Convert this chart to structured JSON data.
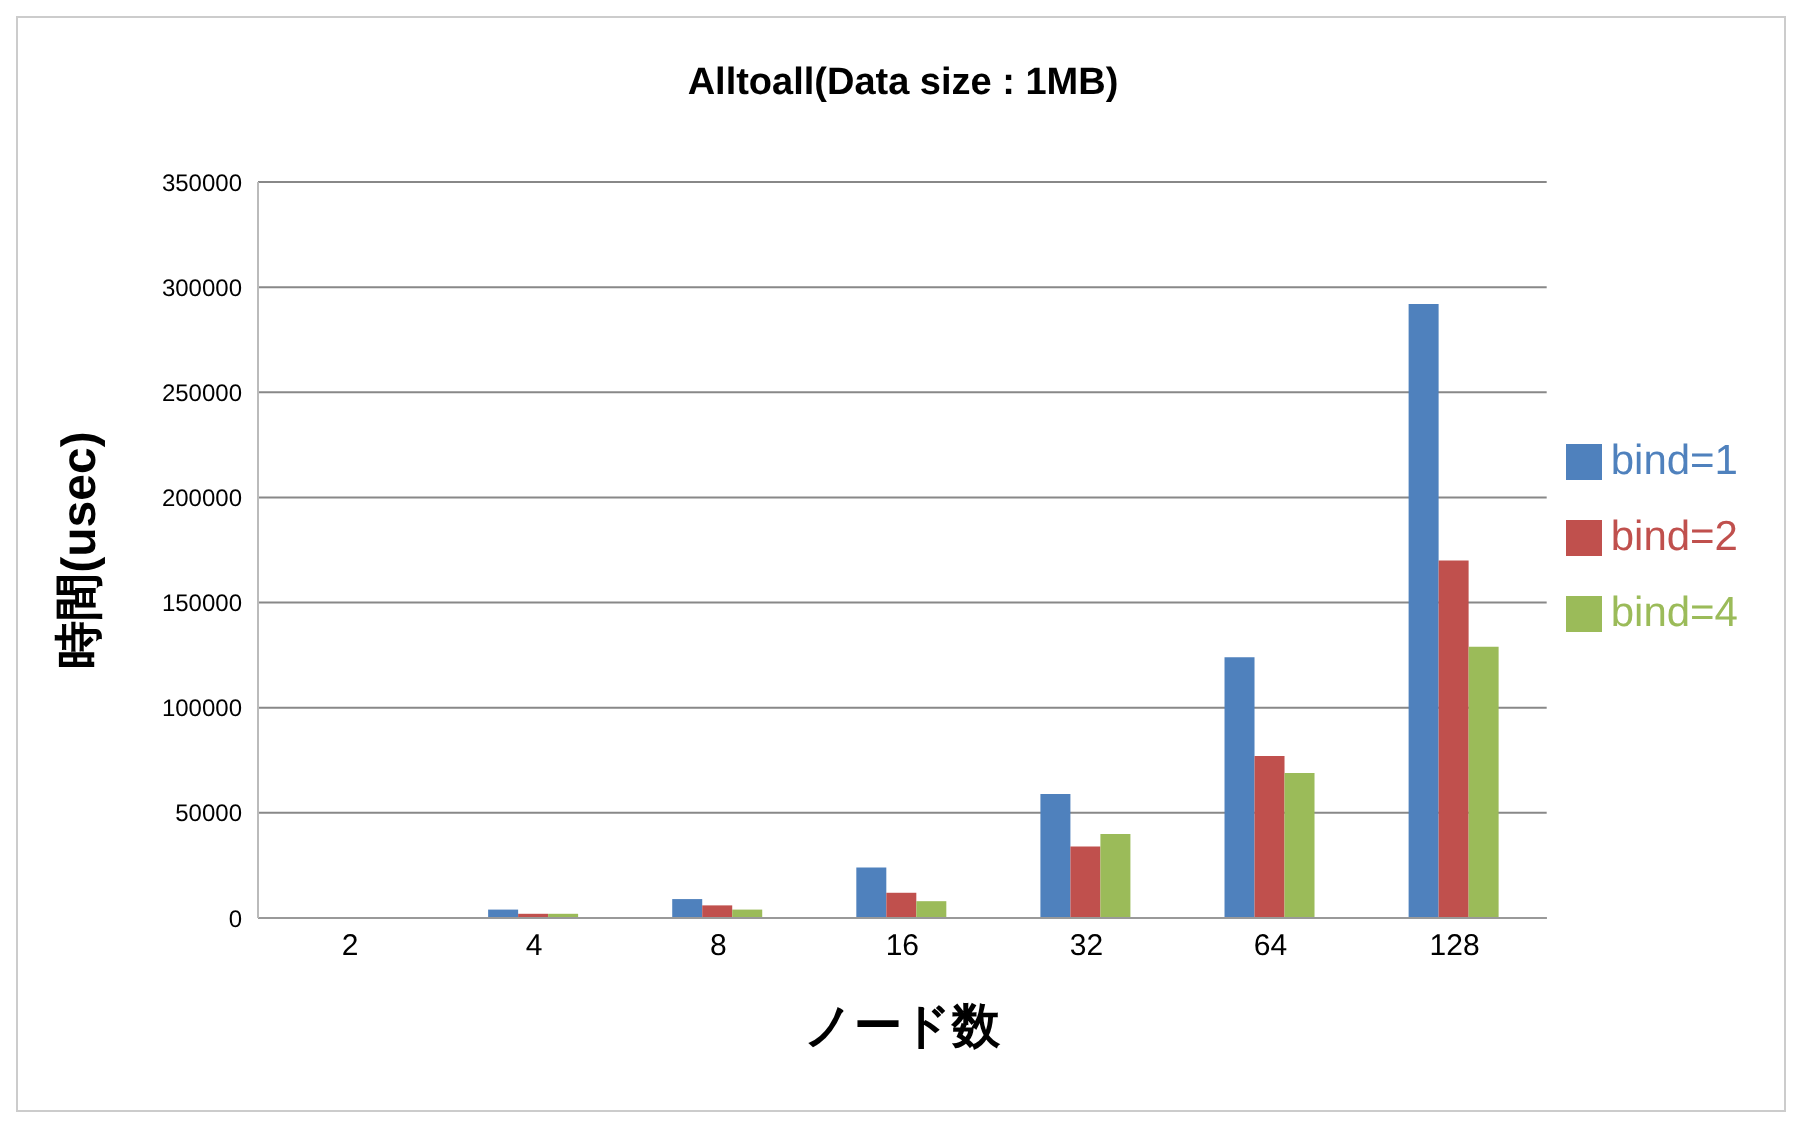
{
  "chart_data": {
    "type": "bar",
    "title": "Alltoall(Data size : 1MB)",
    "xlabel": "ノード数",
    "ylabel": "時間(usec)",
    "categories": [
      "2",
      "4",
      "8",
      "16",
      "32",
      "64",
      "128"
    ],
    "series": [
      {
        "name": "bind=1",
        "color": "#4f81bd",
        "values": [
          null,
          4000,
          9000,
          24000,
          59000,
          124000,
          292000
        ]
      },
      {
        "name": "bind=2",
        "color": "#c0504d",
        "values": [
          null,
          2000,
          6000,
          12000,
          34000,
          77000,
          170000
        ]
      },
      {
        "name": "bind=4",
        "color": "#9bbb59",
        "values": [
          null,
          2000,
          4000,
          8000,
          40000,
          69000,
          129000
        ]
      }
    ],
    "ylim": [
      0,
      350000
    ],
    "yticks": [
      0,
      50000,
      100000,
      150000,
      200000,
      250000,
      300000,
      350000
    ],
    "grid": "y",
    "legend": "right"
  }
}
